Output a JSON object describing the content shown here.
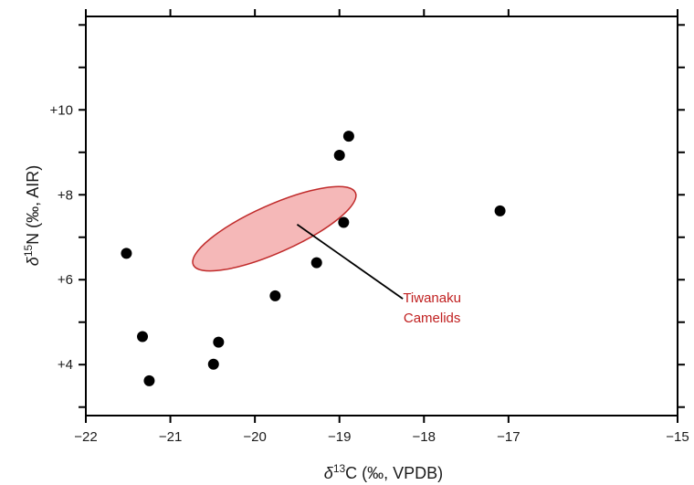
{
  "chart_data": {
    "type": "scatter",
    "x_axis": {
      "label_prefix": "δ",
      "label_sup": "13",
      "label_rest": "C (‰, VPDB)",
      "range": [
        -22,
        -15
      ],
      "ticks": [
        -22,
        -21,
        -20,
        -19,
        -18,
        -17,
        -15
      ],
      "tick_labels": [
        "−22",
        "−21",
        "−20",
        "−19",
        "−18",
        "−17",
        "−15"
      ]
    },
    "y_axis": {
      "label_prefix": "δ",
      "label_sup": "15",
      "label_rest": "N (‰, AIR)",
      "range": [
        2.8,
        12.2
      ],
      "ticks": [
        4,
        6,
        8,
        10
      ],
      "tick_labels": [
        "+4",
        "+6",
        "+8",
        "+10"
      ]
    },
    "points": [
      {
        "x": -21.52,
        "y": 6.62
      },
      {
        "x": -21.33,
        "y": 4.66
      },
      {
        "x": -21.25,
        "y": 3.62
      },
      {
        "x": -20.49,
        "y": 4.01
      },
      {
        "x": -20.43,
        "y": 4.53
      },
      {
        "x": -19.76,
        "y": 5.62
      },
      {
        "x": -19.27,
        "y": 6.4
      },
      {
        "x": -19.0,
        "y": 8.93
      },
      {
        "x": -18.95,
        "y": 7.35
      },
      {
        "x": -18.89,
        "y": 9.38
      },
      {
        "x": -17.1,
        "y": 7.62
      }
    ],
    "region": {
      "label_lines": [
        "Tiwanaku",
        "Camelids"
      ],
      "center": [
        -19.77,
        7.2
      ],
      "semi_axes": [
        1.05,
        0.75
      ],
      "rotation_deg": -24,
      "fill": "#f5b8b8",
      "stroke": "#c02a2a",
      "text_color": "#c01f1f"
    },
    "leader_line": {
      "from": [
        -19.5,
        7.3
      ],
      "to": [
        -18.25,
        5.55
      ]
    },
    "grid": false,
    "colors": {
      "points": "#000000",
      "axes": "#000000"
    }
  }
}
